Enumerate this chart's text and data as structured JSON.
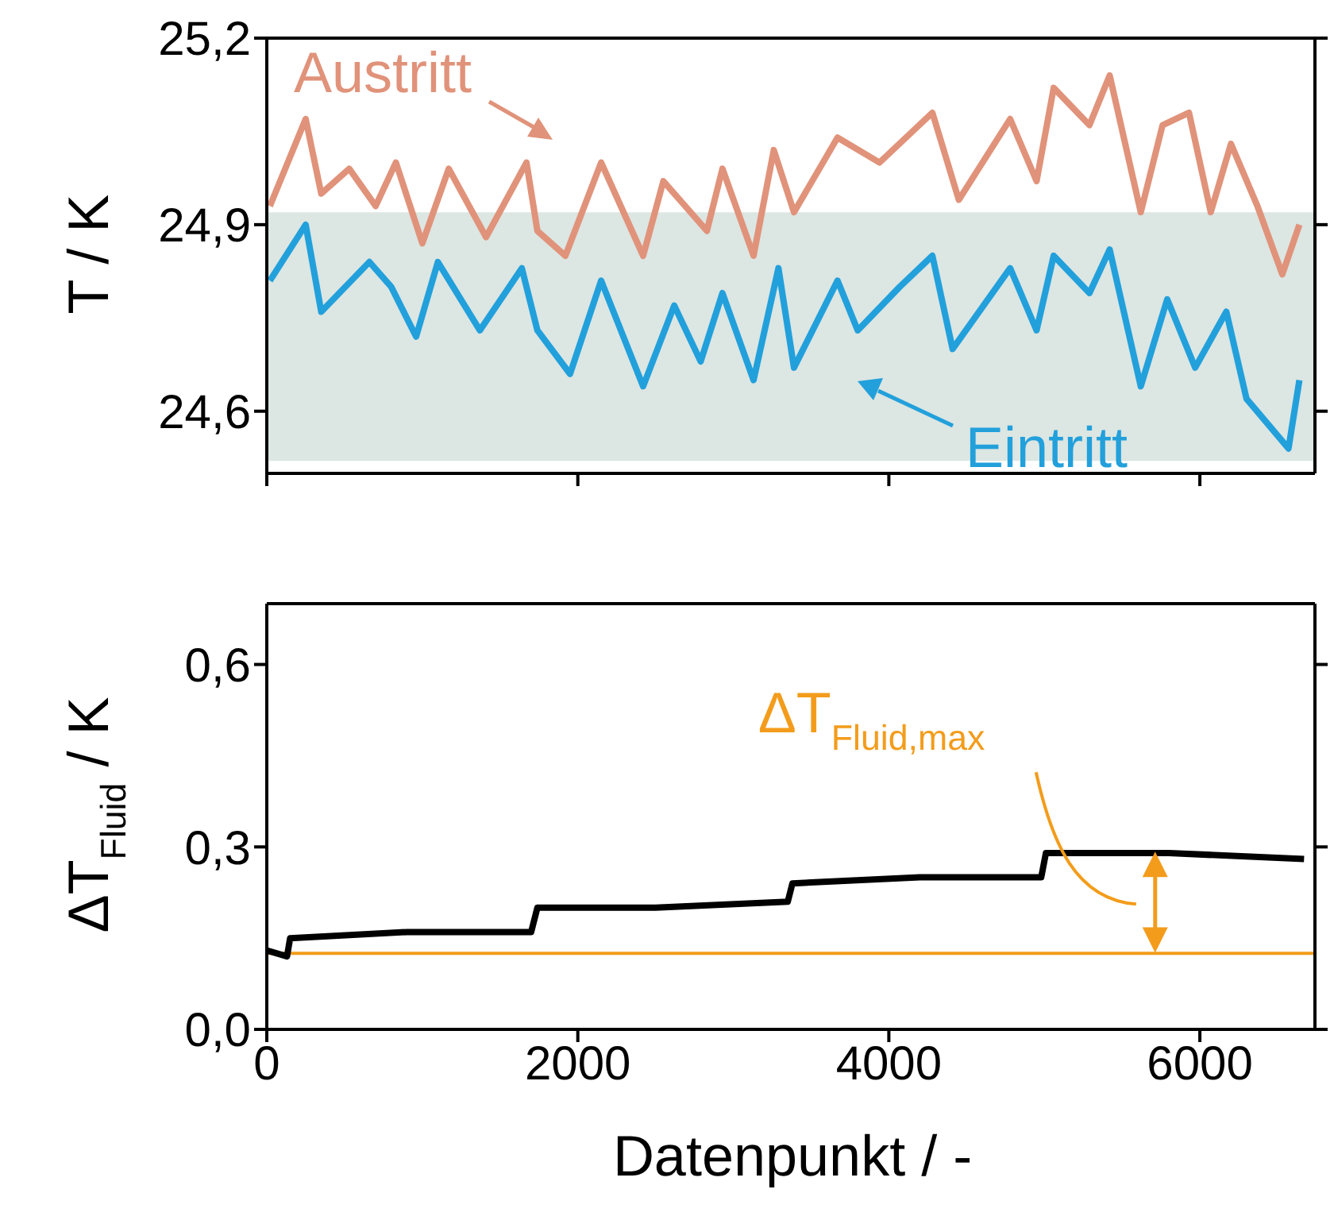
{
  "chart_data": [
    {
      "type": "line",
      "ylabel": "T / K",
      "xlim": [
        0,
        6740
      ],
      "xticks": [
        0,
        2000,
        4000,
        6000
      ],
      "ylim": [
        24.5,
        25.2
      ],
      "yticks": [
        {
          "value": 24.6,
          "label": "24,6"
        },
        {
          "value": 24.9,
          "label": "24,9"
        },
        {
          "value": 25.2,
          "label": "25,2"
        }
      ],
      "tick_labels": "y",
      "marker": "none",
      "line_style": "solid",
      "bands": [
        {
          "axis": "y",
          "from": 24.52,
          "to": 24.92,
          "color": "#dce6e3"
        }
      ],
      "series": [
        {
          "name": "Austritt",
          "color": "#e0937a",
          "x": [
            20,
            250,
            350,
            530,
            700,
            830,
            1000,
            1170,
            1410,
            1670,
            1740,
            1920,
            2150,
            2420,
            2550,
            2830,
            2930,
            3130,
            3260,
            3390,
            3670,
            3940,
            4280,
            4450,
            4780,
            4950,
            5060,
            5290,
            5420,
            5620,
            5760,
            5930,
            6070,
            6200,
            6370,
            6530,
            6640
          ],
          "values": [
            24.93,
            25.07,
            24.95,
            24.99,
            24.93,
            25.0,
            24.87,
            24.99,
            24.88,
            25.0,
            24.89,
            24.85,
            25.0,
            24.85,
            24.97,
            24.89,
            24.99,
            24.85,
            25.02,
            24.92,
            25.04,
            25.0,
            25.08,
            24.94,
            25.07,
            24.97,
            25.12,
            25.06,
            25.14,
            24.92,
            25.06,
            25.08,
            24.92,
            25.03,
            24.93,
            24.82,
            24.9
          ]
        },
        {
          "name": "Eintritt",
          "color": "#22a0db",
          "x": [
            20,
            250,
            350,
            660,
            800,
            960,
            1100,
            1370,
            1640,
            1740,
            1950,
            2150,
            2420,
            2620,
            2790,
            2930,
            3130,
            3290,
            3390,
            3670,
            3800,
            4070,
            4280,
            4410,
            4780,
            4950,
            5060,
            5290,
            5420,
            5620,
            5790,
            5970,
            6170,
            6300,
            6570,
            6640
          ],
          "values": [
            24.81,
            24.9,
            24.76,
            24.84,
            24.8,
            24.72,
            24.84,
            24.73,
            24.83,
            24.73,
            24.66,
            24.81,
            24.64,
            24.77,
            24.68,
            24.79,
            24.65,
            24.83,
            24.67,
            24.81,
            24.73,
            24.8,
            24.85,
            24.7,
            24.83,
            24.73,
            24.85,
            24.79,
            24.86,
            24.64,
            24.78,
            24.67,
            24.76,
            24.62,
            24.54,
            24.65
          ]
        }
      ]
    },
    {
      "type": "line",
      "xlabel": "Datenpunkt / -",
      "ylabel": "ΔT$_{Fluid}$ / K",
      "xlim": [
        0,
        6740
      ],
      "xticks": [
        0,
        2000,
        4000,
        6000
      ],
      "ylim": [
        0,
        0.7
      ],
      "yticks": [
        {
          "value": 0,
          "label": "0,0"
        },
        {
          "value": 0.3,
          "label": "0,3"
        },
        {
          "value": 0.6,
          "label": "0,6"
        }
      ],
      "marker": "none",
      "line_style": "solid",
      "ref_lines": [
        {
          "axis": "y",
          "value": 0.125,
          "color": "#f39c1b"
        }
      ],
      "annotations": [
        "ΔT$_{Fluid,max}$"
      ],
      "series": [
        {
          "color": "#000000",
          "x": [
            0,
            130,
            150,
            900,
            1700,
            1740,
            2500,
            3350,
            3380,
            4200,
            4980,
            5010,
            5800,
            6670
          ],
          "values": [
            0.13,
            0.12,
            0.15,
            0.16,
            0.16,
            0.2,
            0.2,
            0.21,
            0.24,
            0.25,
            0.25,
            0.29,
            0.29,
            0.28
          ]
        }
      ]
    }
  ]
}
